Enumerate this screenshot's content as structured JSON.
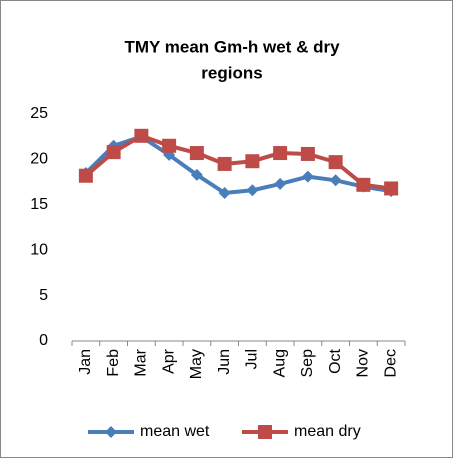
{
  "chart_data": {
    "type": "line",
    "title": "TMY mean Gm-h wet & dry regions",
    "categories": [
      "Jan",
      "Feb",
      "Mar",
      "Apr",
      "May",
      "Jun",
      "Jul",
      "Aug",
      "Sep",
      "Oct",
      "Nov",
      "Dec"
    ],
    "series": [
      {
        "name": "mean wet",
        "color": "#4a7ebb",
        "marker": "diamond",
        "values": [
          18.5,
          21.5,
          22.5,
          20.5,
          18.3,
          16.3,
          16.6,
          17.3,
          18.1,
          17.7,
          17.0,
          16.5
        ]
      },
      {
        "name": "mean dry",
        "color": "#be4b48",
        "marker": "square",
        "values": [
          18.2,
          20.8,
          22.6,
          21.5,
          20.7,
          19.5,
          19.8,
          20.7,
          20.6,
          19.7,
          17.2,
          16.8
        ]
      }
    ],
    "ylim": [
      0,
      25
    ],
    "yticks": [
      0,
      5,
      10,
      15,
      20,
      25
    ],
    "grid": false,
    "legend": "bottom"
  }
}
